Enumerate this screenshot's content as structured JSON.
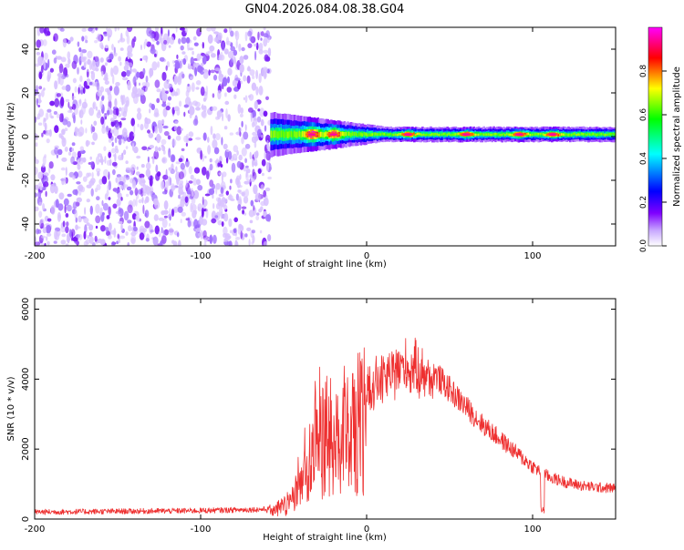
{
  "page": {
    "title": "GN04.2026.084.08.38.G04"
  },
  "chart_data": [
    {
      "type": "heatmap",
      "title": "GN04.2026.084.08.38.G04",
      "xlabel": "Height of straight line (km)",
      "ylabel": "Frequency (Hz)",
      "xlim": [
        -200,
        150
      ],
      "ylim": [
        -50,
        50
      ],
      "x_ticks": [
        -200,
        -100,
        0,
        100
      ],
      "y_ticks": [
        -40,
        -20,
        0,
        20,
        40
      ],
      "colorbar": {
        "label": "Normalized spectral amplitude",
        "range": [
          0,
          1
        ],
        "ticks": [
          "0.0",
          "0.2",
          "0.4",
          "0.6",
          "0.8"
        ],
        "colors": [
          "#ffffff",
          "#7f00ff",
          "#0000ff",
          "#00ffff",
          "#00ff00",
          "#ffff00",
          "#ff0000",
          "#ff00ff"
        ]
      },
      "regions": [
        {
          "name": "noise",
          "x_range": [
            -200,
            -58
          ],
          "f_range": [
            -50,
            50
          ],
          "amplitude": [
            0.05,
            0.2
          ]
        },
        {
          "name": "signal",
          "x_range": [
            -58,
            150
          ],
          "f_center": 1,
          "f_halfwidth": [
            6,
            2
          ],
          "peak_amplitude": 0.95,
          "peaks_x": [
            -33,
            -20,
            25,
            60,
            92,
            112
          ]
        }
      ],
      "grid": false
    },
    {
      "type": "line",
      "xlabel": "Height of straight line (km)",
      "ylabel": "SNR (10 * v/v)",
      "xlim": [
        -200,
        150
      ],
      "ylim": [
        0,
        6300
      ],
      "x_ticks": [
        -200,
        -100,
        0,
        100
      ],
      "y_ticks": [
        0,
        2000,
        4000,
        6000
      ],
      "series": [
        {
          "color": "#ee3030",
          "envelope_x": [
            -200,
            -100,
            -60,
            -45,
            -40,
            -30,
            -20,
            -10,
            0,
            10,
            20,
            30,
            40,
            50,
            60,
            70,
            80,
            90,
            100,
            110,
            120,
            130,
            140,
            150
          ],
          "envelope_y": [
            200,
            240,
            280,
            700,
            1600,
            3500,
            3200,
            3800,
            4000,
            4200,
            4600,
            4500,
            4200,
            3700,
            3200,
            2700,
            2300,
            1900,
            1500,
            1200,
            1050,
            950,
            900,
            880
          ]
        }
      ],
      "grid": false
    }
  ]
}
